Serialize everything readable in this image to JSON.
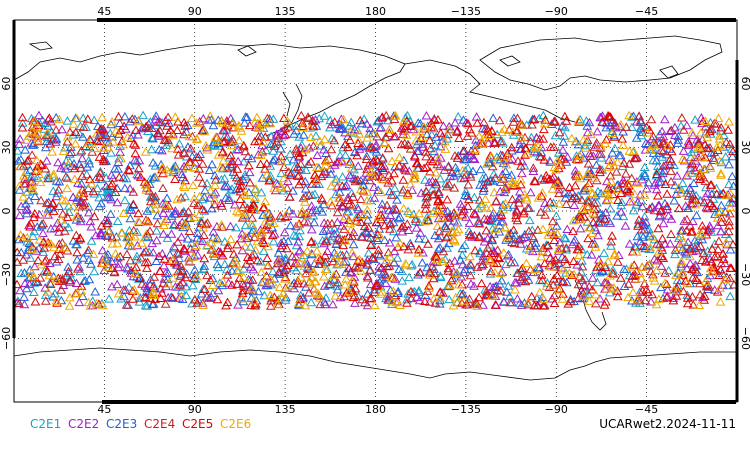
{
  "map": {
    "type": "scatter-map",
    "top_lon_ticks": [
      "45",
      "90",
      "135",
      "180",
      "−135",
      "−90",
      "−45"
    ],
    "bottom_lon_ticks": [
      "45",
      "90",
      "135",
      "180",
      "−135",
      "−90",
      "−45"
    ],
    "left_lat_ticks": [
      "60",
      "30",
      "0",
      "−30",
      "−60"
    ],
    "right_lat_ticks": [
      "60",
      "30",
      "0",
      "−30",
      "−60"
    ],
    "grid": true,
    "marker": "open-triangle",
    "lat_extent": [
      -45,
      45
    ]
  },
  "legend": {
    "items": [
      {
        "label": "C2E1",
        "color": "#17a2c8"
      },
      {
        "label": "C2E2",
        "color": "#a020c8"
      },
      {
        "label": "C2E3",
        "color": "#2060d8"
      },
      {
        "label": "C2E4",
        "color": "#c82020"
      },
      {
        "label": "C2E5",
        "color": "#e00000"
      },
      {
        "label": "C2E6",
        "color": "#f0a800"
      }
    ]
  },
  "caption": "UCARwet2.2024-11-11"
}
